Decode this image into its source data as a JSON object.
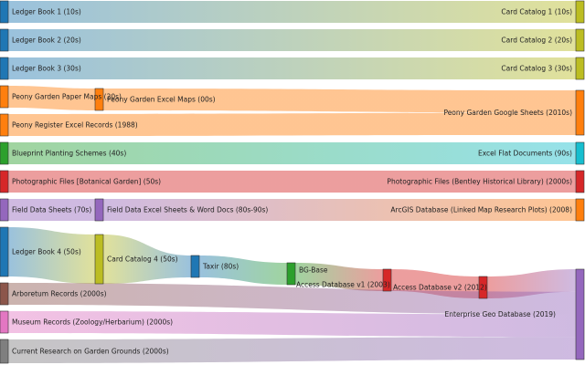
{
  "diagram": {
    "type": "sankey",
    "nodes": [
      {
        "id": "lb1",
        "label": "Ledger Book 1 (10s)",
        "color": "#1f77b4"
      },
      {
        "id": "lb2",
        "label": "Ledger Book 2 (20s)",
        "color": "#1f77b4"
      },
      {
        "id": "lb3",
        "label": "Ledger Book 3 (30s)",
        "color": "#1f77b4"
      },
      {
        "id": "pgpm",
        "label": "Peony Garden Paper Maps (20s)",
        "color": "#ff7f0e"
      },
      {
        "id": "prer",
        "label": "Peony Register Excel Records (1988)",
        "color": "#ff7f0e"
      },
      {
        "id": "bps",
        "label": "Blueprint Planting Schemes (40s)",
        "color": "#2ca02c"
      },
      {
        "id": "pfbg",
        "label": "Photographic Files [Botanical Garden] (50s)",
        "color": "#d62728"
      },
      {
        "id": "fds",
        "label": "Field Data Sheets (70s)",
        "color": "#9467bd"
      },
      {
        "id": "lb4",
        "label": "Ledger Book 4 (50s)",
        "color": "#1f77b4"
      },
      {
        "id": "arb",
        "label": "Arboretum Records (2000s)",
        "color": "#8c564b"
      },
      {
        "id": "mus",
        "label": "Museum Records (Zoology/Herbarium) (2000s)",
        "color": "#e377c2"
      },
      {
        "id": "cur",
        "label": "Current Research on Garden Grounds (2000s)",
        "color": "#7f7f7f"
      },
      {
        "id": "pgem",
        "label": "Peony Garden Excel Maps (00s)",
        "color": "#ff7f0e"
      },
      {
        "id": "fdex",
        "label": "Field Data Excel Sheets & Word Docs (80s-90s)",
        "color": "#9467bd"
      },
      {
        "id": "cc4",
        "label": "Card Catalog 4 (50s)",
        "color": "#bcbd22"
      },
      {
        "id": "tax",
        "label": "Taxir (80s)",
        "color": "#1f77b4"
      },
      {
        "id": "bgb",
        "label": "BG-Base",
        "color": "#2ca02c"
      },
      {
        "id": "ad1",
        "label": "Access Database v1 (2003)",
        "color": "#d62728"
      },
      {
        "id": "ad2",
        "label": "Access Database v2 (2012)",
        "color": "#d62728"
      },
      {
        "id": "cc1",
        "label": "Card Catalog 1 (10s)",
        "color": "#bcbd22"
      },
      {
        "id": "cc2",
        "label": "Card Catalog 2 (20s)",
        "color": "#bcbd22"
      },
      {
        "id": "cc3",
        "label": "Card Catalog 3 (30s)",
        "color": "#bcbd22"
      },
      {
        "id": "pggs",
        "label": "Peony Garden Google Sheets (2010s)",
        "color": "#ff7f0e"
      },
      {
        "id": "efd",
        "label": "Excel Flat Documents (90s)",
        "color": "#17becf"
      },
      {
        "id": "pfbh",
        "label": "Photographic Files (Bentley Historical Library) (2000s)",
        "color": "#d62728"
      },
      {
        "id": "arcg",
        "label": "ArcGIS Database (Linked Map Research Plots) (2008)",
        "color": "#ff7f0e"
      },
      {
        "id": "egd",
        "label": "Enterprise Geo Database (2019)",
        "color": "#9467bd"
      }
    ],
    "links": [
      {
        "source": "lb1",
        "target": "cc1",
        "value": 1
      },
      {
        "source": "lb2",
        "target": "cc2",
        "value": 1
      },
      {
        "source": "lb3",
        "target": "cc3",
        "value": 1
      },
      {
        "source": "pgpm",
        "target": "pgem",
        "value": 1
      },
      {
        "source": "pgem",
        "target": "pggs",
        "value": 1
      },
      {
        "source": "prer",
        "target": "pggs",
        "value": 1
      },
      {
        "source": "bps",
        "target": "efd",
        "value": 1
      },
      {
        "source": "pfbg",
        "target": "pfbh",
        "value": 1
      },
      {
        "source": "fds",
        "target": "fdex",
        "value": 1
      },
      {
        "source": "fdex",
        "target": "arcg",
        "value": 1
      },
      {
        "source": "lb4",
        "target": "cc4",
        "value": 2
      },
      {
        "source": "cc4",
        "target": "tax",
        "value": 1
      },
      {
        "source": "tax",
        "target": "bgb",
        "value": 1
      },
      {
        "source": "bgb",
        "target": "ad1",
        "value": 1
      },
      {
        "source": "ad1",
        "target": "ad2",
        "value": 1
      },
      {
        "source": "ad2",
        "target": "egd",
        "value": 1
      },
      {
        "source": "arb",
        "target": "egd",
        "value": 1
      },
      {
        "source": "mus",
        "target": "egd",
        "value": 1
      },
      {
        "source": "cur",
        "target": "egd",
        "value": 1
      }
    ]
  }
}
